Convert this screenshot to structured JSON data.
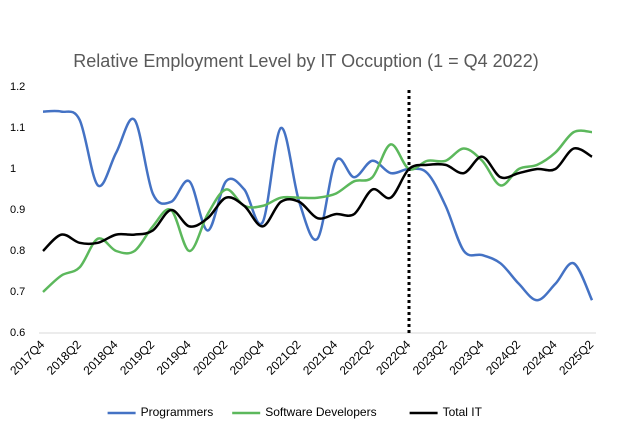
{
  "chart_data": {
    "type": "line",
    "title": "Relative Employment Level by IT Occuption (1 = Q4 2022)",
    "categories": [
      "2017Q4",
      null,
      "2018Q2",
      null,
      "2018Q4",
      null,
      "2019Q2",
      null,
      "2019Q4",
      null,
      "2020Q2",
      null,
      "2020Q4",
      null,
      "2021Q2",
      null,
      "2021Q4",
      null,
      "2022Q2",
      null,
      "2022Q4",
      null,
      "2023Q2",
      null,
      "2023Q4",
      null,
      "2024Q2",
      null,
      "2024Q4",
      null,
      "2025Q2"
    ],
    "series": [
      {
        "name": "Programmers",
        "color": "#4472c4",
        "values": [
          1.14,
          1.14,
          1.12,
          0.96,
          1.04,
          1.12,
          0.94,
          0.92,
          0.97,
          0.85,
          0.97,
          0.95,
          0.87,
          1.1,
          0.92,
          0.83,
          1.02,
          0.98,
          1.02,
          0.99,
          1.0,
          0.99,
          0.91,
          0.8,
          0.79,
          0.77,
          0.72,
          0.68,
          0.72,
          0.77,
          0.68
        ]
      },
      {
        "name": "Software Developers",
        "color": "#5cb85c",
        "values": [
          0.7,
          0.74,
          0.76,
          0.83,
          0.8,
          0.8,
          0.86,
          0.9,
          0.8,
          0.89,
          0.95,
          0.91,
          0.91,
          0.93,
          0.93,
          0.93,
          0.94,
          0.97,
          0.98,
          1.06,
          1.0,
          1.02,
          1.02,
          1.05,
          1.02,
          0.96,
          1.0,
          1.01,
          1.04,
          1.09,
          1.09
        ]
      },
      {
        "name": "Total IT",
        "color": "#000000",
        "values": [
          0.8,
          0.84,
          0.82,
          0.82,
          0.84,
          0.84,
          0.85,
          0.9,
          0.86,
          0.88,
          0.93,
          0.91,
          0.86,
          0.92,
          0.92,
          0.88,
          0.89,
          0.89,
          0.95,
          0.93,
          1.0,
          1.01,
          1.01,
          0.99,
          1.03,
          0.98,
          0.99,
          1.0,
          1.0,
          1.05,
          1.03
        ]
      }
    ],
    "ylim": [
      0.6,
      1.2
    ],
    "yticks": [
      0.6,
      0.7,
      0.8,
      0.9,
      1,
      1.1,
      1.2
    ],
    "reference_line": {
      "x": 20,
      "style": "dotted"
    },
    "legend": "bottom"
  }
}
